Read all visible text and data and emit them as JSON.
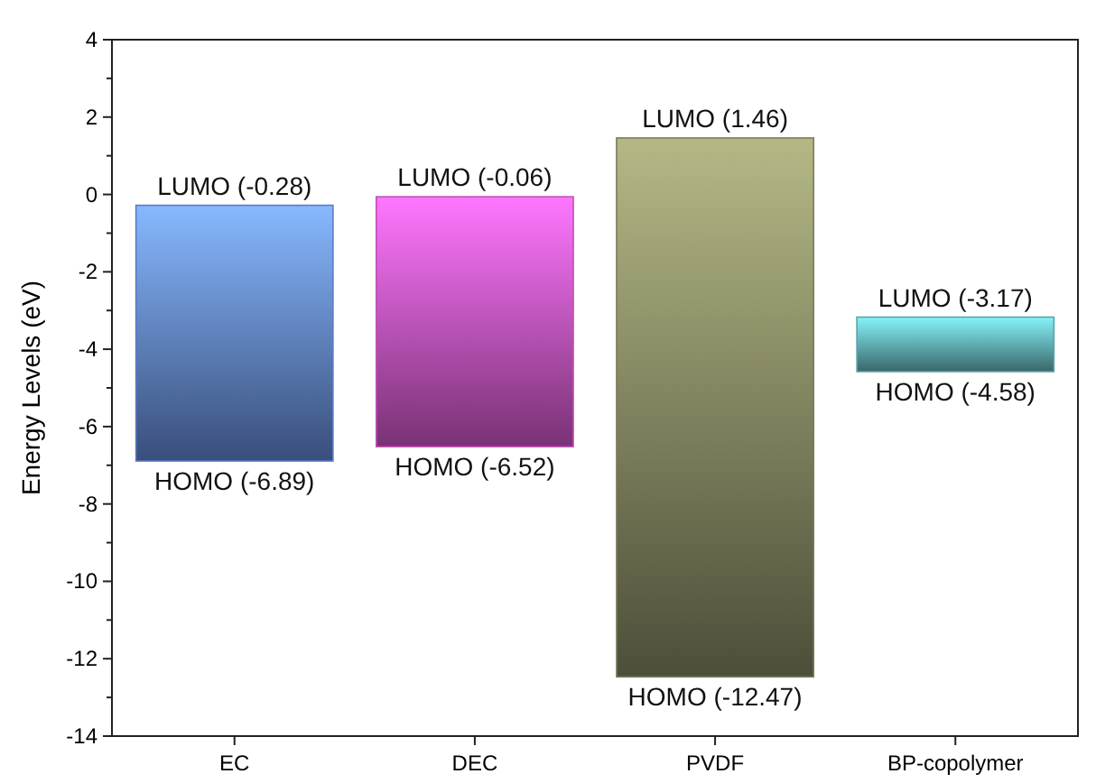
{
  "chart_data": {
    "type": "bar",
    "ylabel": "Energy Levels (eV)",
    "categories": [
      "EC",
      "DEC",
      "PVDF",
      "BP-copolymer"
    ],
    "base": [
      -6.89,
      -6.52,
      -12.47,
      -4.58
    ],
    "values": [
      6.61,
      6.46,
      13.93,
      1.41
    ],
    "colors": [
      "#5b7cc4",
      "#c050b8",
      "#7a7c5a",
      "#5aa4a8"
    ],
    "ylim": [
      -14,
      4
    ],
    "yticks": [
      -14,
      -12,
      -10,
      -8,
      -6,
      -4,
      -2,
      0,
      2,
      4
    ],
    "grid": false,
    "annotations": [
      {
        "text": "LUMO (-0.28)",
        "x": "EC",
        "y": -0.28
      },
      {
        "text": "HOMO (-6.89)",
        "x": "EC",
        "y": -6.89
      },
      {
        "text": "LUMO (-0.06)",
        "x": "DEC",
        "y": -0.06
      },
      {
        "text": "HOMO (-6.52)",
        "x": "DEC",
        "y": -6.52
      },
      {
        "text": "LUMO (1.46)",
        "x": "PVDF",
        "y": 1.46
      },
      {
        "text": "HOMO (-12.47)",
        "x": "PVDF",
        "y": -12.47
      },
      {
        "text": "LUMO (-3.17)",
        "x": "BP-copolymer",
        "y": -3.17
      },
      {
        "text": "HOMO (-4.58)",
        "x": "BP-copolymer",
        "y": -4.58
      }
    ]
  }
}
